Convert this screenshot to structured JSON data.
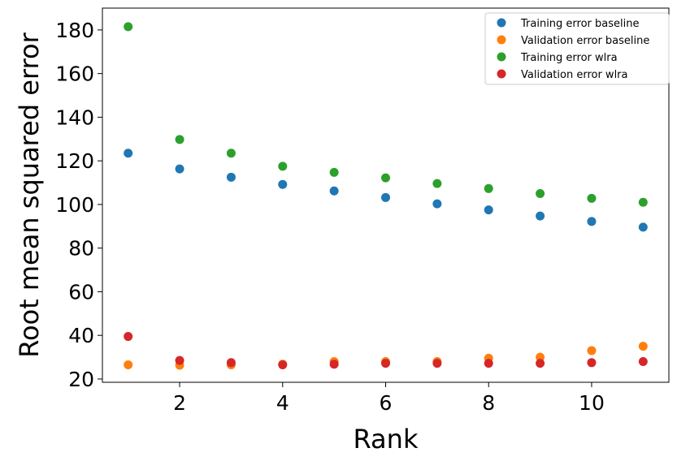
{
  "chart_data": {
    "type": "scatter",
    "title": "",
    "xlabel": "Rank",
    "ylabel": "Root mean squared error",
    "xlim": [
      0.5,
      11.5
    ],
    "ylim": [
      18.5,
      190
    ],
    "xticks": [
      2,
      4,
      6,
      8,
      10
    ],
    "yticks": [
      20,
      40,
      60,
      80,
      100,
      120,
      140,
      160,
      180
    ],
    "grid": false,
    "legend_position": "top-right",
    "x": [
      1,
      2,
      3,
      4,
      5,
      6,
      7,
      8,
      9,
      10,
      11
    ],
    "series": [
      {
        "name": "Training error baseline",
        "color": "#1f77b4",
        "values": [
          123.5,
          116.3,
          112.5,
          109.2,
          106.2,
          103.2,
          100.3,
          97.5,
          94.7,
          92.2,
          89.6
        ]
      },
      {
        "name": "Validation error baseline",
        "color": "#ff7f0e",
        "values": [
          26.5,
          26.3,
          26.5,
          26.8,
          28.0,
          28.0,
          28.0,
          29.5,
          30.0,
          33.0,
          35.0
        ]
      },
      {
        "name": "Training error wlra",
        "color": "#2ca02c",
        "values": [
          181.5,
          129.8,
          123.5,
          117.5,
          114.7,
          112.2,
          109.6,
          107.3,
          105.0,
          102.8,
          101.0
        ]
      },
      {
        "name": "Validation error wlra",
        "color": "#d62728",
        "values": [
          39.5,
          28.5,
          27.5,
          26.5,
          26.8,
          27.2,
          27.2,
          27.2,
          27.2,
          27.5,
          28.0
        ]
      }
    ]
  }
}
